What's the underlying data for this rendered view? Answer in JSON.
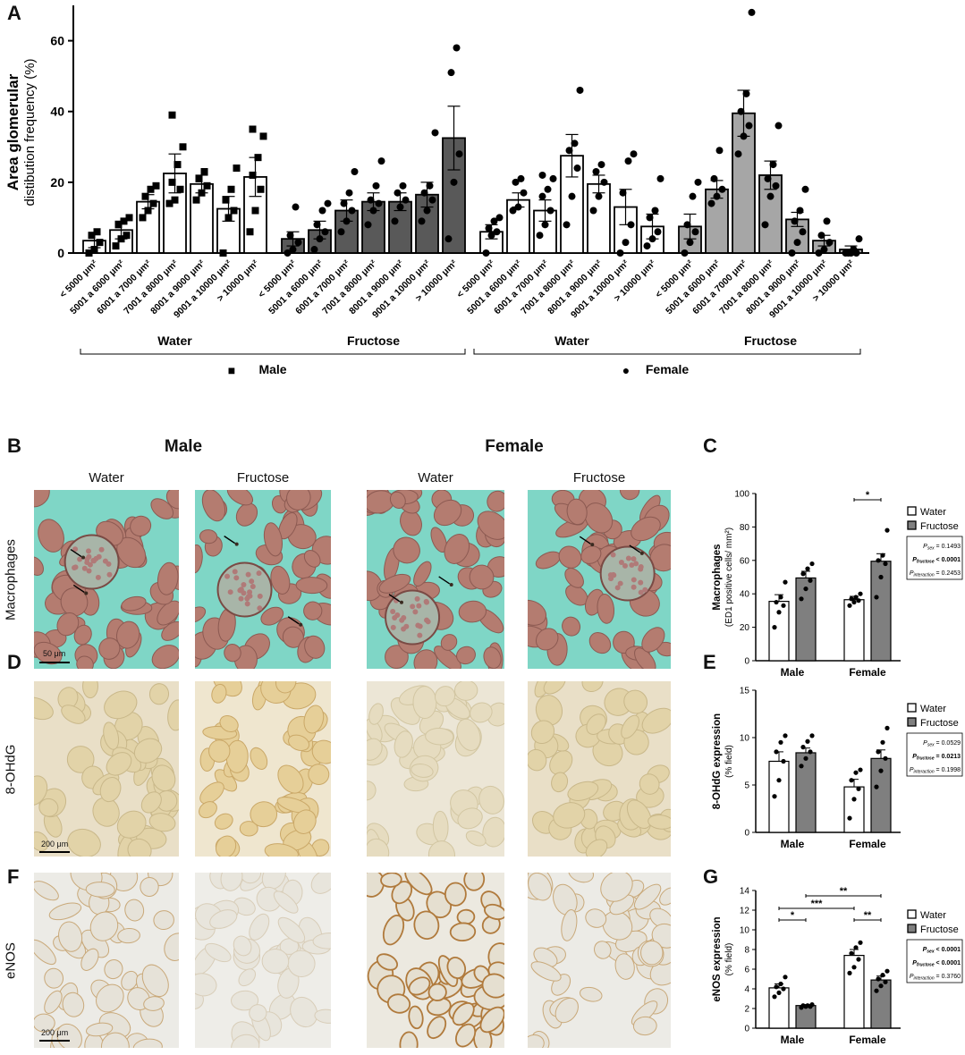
{
  "panels": {
    "A": "A",
    "B": "B",
    "C": "C",
    "D": "D",
    "E": "E",
    "F": "F",
    "G": "G"
  },
  "chart_data": [
    {
      "id": "A",
      "type": "bar",
      "ylabel_main": "Area glomerular",
      "ylabel_sub": "distibution frequency (%)",
      "ylim": [
        0,
        70
      ],
      "yticks": [
        0,
        20,
        40,
        60
      ],
      "categories": [
        "< 5000 μm²",
        "5001 a 6000 μm²",
        "6001 a 7000 μm²",
        "7001 a 8000 μm²",
        "8001 a 9000 μm²",
        "9001 a 10000 μm²",
        "> 10000 μm²"
      ],
      "group_labels": [
        "Water",
        "Fructose",
        "Water",
        "Fructose"
      ],
      "sex_labels": [
        "Male",
        "Female"
      ],
      "sex_markers": [
        "■",
        "●"
      ],
      "series": [
        {
          "name": "Male Water",
          "fill": "#ffffff",
          "marker": "square",
          "values": [
            3.5,
            6.5,
            14.5,
            22.5,
            19.5,
            12.5,
            21.5
          ],
          "errors": [
            2,
            2.5,
            2,
            5.5,
            2.5,
            3.5,
            5.5
          ],
          "points": [
            [
              0,
              1,
              3,
              5,
              6
            ],
            [
              2,
              4,
              5,
              8,
              9,
              10
            ],
            [
              10,
              12,
              14,
              16,
              18,
              19
            ],
            [
              14,
              15,
              18,
              20,
              25,
              30,
              39
            ],
            [
              15,
              17,
              19,
              21,
              23
            ],
            [
              0,
              10,
              12,
              15,
              18,
              24
            ],
            [
              6,
              12,
              18,
              22,
              27,
              33,
              35
            ]
          ]
        },
        {
          "name": "Male Fructose",
          "fill": "#595959",
          "marker": "circle",
          "values": [
            4,
            6.5,
            12,
            14.5,
            14.5,
            16.5,
            32.5
          ],
          "errors": [
            2,
            2.5,
            3,
            2.5,
            2.5,
            3.5,
            9
          ],
          "points": [
            [
              0,
              1,
              3,
              5,
              13
            ],
            [
              1,
              4,
              6,
              8,
              12,
              14
            ],
            [
              6,
              9,
              12,
              14,
              17,
              23
            ],
            [
              8,
              12,
              14,
              15,
              19,
              26
            ],
            [
              9,
              13,
              15,
              17,
              19
            ],
            [
              9,
              12,
              15,
              17,
              19,
              34
            ],
            [
              4,
              20,
              28,
              51,
              58
            ]
          ]
        },
        {
          "name": "Female Water",
          "fill": "#ffffff",
          "marker": "circle",
          "values": [
            6,
            15,
            12,
            27.5,
            19.5,
            13,
            7.5
          ],
          "errors": [
            2,
            2,
            3,
            6,
            2.5,
            5,
            3.5
          ],
          "points": [
            [
              0,
              5,
              6,
              7,
              9,
              10
            ],
            [
              12,
              13,
              17,
              20,
              21
            ],
            [
              5,
              8,
              12,
              16,
              18,
              21,
              22
            ],
            [
              8,
              16,
              24,
              29,
              31,
              46
            ],
            [
              12,
              16,
              20,
              23,
              25
            ],
            [
              0,
              3,
              8,
              17,
              26,
              28
            ],
            [
              2,
              4,
              6,
              10,
              12,
              21
            ]
          ]
        },
        {
          "name": "Female Fructose",
          "fill": "#a6a6a6",
          "marker": "circle",
          "values": [
            7.5,
            18,
            39.5,
            22,
            9.5,
            3.5,
            1
          ],
          "errors": [
            3.5,
            2.5,
            6.5,
            4,
            2,
            1.5,
            1
          ],
          "points": [
            [
              0,
              3,
              6,
              8,
              16,
              20
            ],
            [
              14,
              16,
              18,
              21,
              29
            ],
            [
              28,
              33,
              36,
              40,
              45,
              68
            ],
            [
              8,
              16,
              19,
              21,
              25,
              36
            ],
            [
              0,
              3,
              6,
              9,
              12,
              18
            ],
            [
              0,
              1,
              3,
              5,
              9
            ],
            [
              0,
              0,
              0,
              0,
              1,
              4
            ]
          ]
        }
      ]
    },
    {
      "id": "C",
      "type": "bar",
      "ylabel": "Macrophages",
      "ylabel_sub": "(ED1 positive cells/ mm²)",
      "ylim": [
        0,
        100
      ],
      "yticks": [
        0,
        20,
        40,
        60,
        80,
        100
      ],
      "categories": [
        "Male",
        "Female"
      ],
      "series": [
        {
          "name": "Water",
          "fill": "#ffffff",
          "values": [
            35.5,
            36.5
          ],
          "errors": [
            4,
            2
          ],
          "points": [
            [
              20,
              29,
              33,
              35,
              38,
              47
            ],
            [
              33,
              35,
              36,
              37,
              38,
              40
            ]
          ]
        },
        {
          "name": "Fructose",
          "fill": "#7f7f7f",
          "values": [
            49.5,
            59.5
          ],
          "errors": [
            4,
            4.5
          ],
          "points": [
            [
              37,
              43,
              48,
              52,
              55,
              58
            ],
            [
              38,
              50,
              58,
              60,
              63,
              78
            ]
          ]
        }
      ],
      "legend": [
        "Water",
        "Fructose"
      ],
      "stats": [
        {
          "label": "P",
          "sub": "sex",
          "value": " = 0.1493",
          "bold": false
        },
        {
          "label": "P",
          "sub": "fructose",
          "value": " < 0.0001",
          "bold": true
        },
        {
          "label": "P",
          "sub": "interaction",
          "value": " = 0.2453",
          "bold": false
        }
      ],
      "brackets": [
        {
          "from": "Female Water",
          "to": "Female Fructose",
          "label": "*"
        }
      ]
    },
    {
      "id": "E",
      "type": "bar",
      "ylabel": "8-OHdG expression",
      "ylabel_sub": "(% field)",
      "ylim": [
        0,
        15
      ],
      "yticks": [
        0,
        5,
        10,
        15
      ],
      "categories": [
        "Male",
        "Female"
      ],
      "series": [
        {
          "name": "Water",
          "fill": "#ffffff",
          "values": [
            7.5,
            4.8
          ],
          "errors": [
            1,
            0.8
          ],
          "points": [
            [
              3.8,
              5.5,
              7.5,
              8.5,
              9.5,
              10.2
            ],
            [
              1.5,
              3.5,
              4.6,
              5.5,
              6.3,
              6.6
            ]
          ]
        },
        {
          "name": "Fructose",
          "fill": "#7f7f7f",
          "values": [
            8.4,
            7.8
          ],
          "errors": [
            0.5,
            0.9
          ],
          "points": [
            [
              7,
              7.8,
              8.5,
              9,
              9.6,
              10.2
            ],
            [
              4.8,
              6.5,
              7.8,
              8.5,
              9.5,
              11
            ]
          ]
        }
      ],
      "legend": [
        "Water",
        "Fructose"
      ],
      "stats": [
        {
          "label": "P",
          "sub": "sex",
          "value": " = 0.0529",
          "bold": false
        },
        {
          "label": "P",
          "sub": "fructose",
          "value": " = 0.0213",
          "bold": true
        },
        {
          "label": "P",
          "sub": "interaction",
          "value": " = 0.1998",
          "bold": false
        }
      ],
      "brackets": []
    },
    {
      "id": "G",
      "type": "bar",
      "ylabel": "eNOS expression",
      "ylabel_sub": "(% field)",
      "ylim": [
        0,
        14
      ],
      "yticks": [
        0,
        2,
        4,
        6,
        8,
        10,
        12,
        14
      ],
      "categories": [
        "Male",
        "Female"
      ],
      "series": [
        {
          "name": "Water",
          "fill": "#ffffff",
          "values": [
            4.1,
            7.4
          ],
          "errors": [
            0.4,
            0.6
          ],
          "points": [
            [
              3.2,
              3.6,
              4.0,
              4.2,
              4.5,
              5.2
            ],
            [
              5.6,
              6.2,
              7.0,
              7.6,
              8.2,
              8.7
            ]
          ]
        },
        {
          "name": "Fructose",
          "fill": "#7f7f7f",
          "values": [
            2.3,
            4.9
          ],
          "errors": [
            0.1,
            0.4
          ],
          "points": [
            [
              2.1,
              2.2,
              2.2,
              2.3,
              2.3,
              2.4
            ],
            [
              3.8,
              4.3,
              4.7,
              5.0,
              5.4,
              5.8
            ]
          ]
        }
      ],
      "legend": [
        "Water",
        "Fructose"
      ],
      "stats": [
        {
          "label": "P",
          "sub": "sex",
          "value": " < 0.0001",
          "bold": true
        },
        {
          "label": "P",
          "sub": "fructose",
          "value": " < 0.0001",
          "bold": true
        },
        {
          "label": "P",
          "sub": "interaction",
          "value": " = 0.3760",
          "bold": false
        }
      ],
      "brackets": [
        {
          "from": "Male Water",
          "to": "Male Fructose",
          "label": "*",
          "level": 0
        },
        {
          "from": "Male Water",
          "to": "Female Water",
          "label": "***",
          "level": 1
        },
        {
          "from": "Female Water",
          "to": "Female Fructose",
          "label": "**",
          "level": 0
        },
        {
          "from": "Male Fructose",
          "to": "Female Fructose",
          "label": "**",
          "level": 2
        }
      ]
    }
  ],
  "micrographs": {
    "top_headers": [
      "Male",
      "Female"
    ],
    "col_headers": [
      "Water",
      "Fructose",
      "Water",
      "Fructose"
    ],
    "row_labels": [
      "Macrophages",
      "8-OHdG",
      "eNOS"
    ],
    "scalebars": [
      "50 μm",
      "200 μm",
      "200 μm"
    ]
  }
}
